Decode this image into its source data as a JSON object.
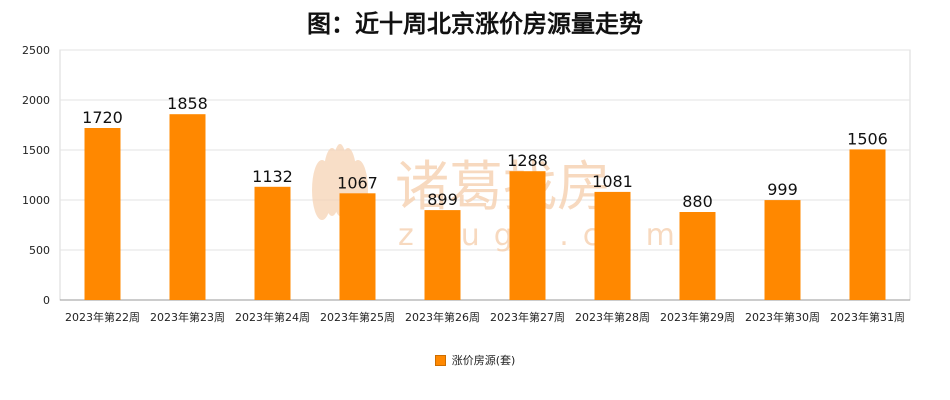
{
  "chart_data": {
    "type": "bar",
    "title": "图：近十周北京涨价房源量走势",
    "categories": [
      "2023年第22周",
      "2023年第23周",
      "2023年第24周",
      "2023年第25周",
      "2023年第26周",
      "2023年第27周",
      "2023年第28周",
      "2023年第29周",
      "2023年第30周",
      "2023年第31周"
    ],
    "series": [
      {
        "name": "涨价房源(套)",
        "values": [
          1720,
          1858,
          1132,
          1067,
          899,
          1288,
          1081,
          880,
          999,
          1506
        ],
        "color": "#ff8800"
      }
    ],
    "ylim": [
      0,
      2500
    ],
    "yticks": [
      0,
      500,
      1000,
      1500,
      2000,
      2500
    ],
    "grid": true,
    "legend_position": "bottom-center",
    "data_labels": true
  },
  "watermark": {
    "text_cn": "诸葛找房",
    "text_en": "zhuge.com",
    "color": "#f6d3b5"
  }
}
